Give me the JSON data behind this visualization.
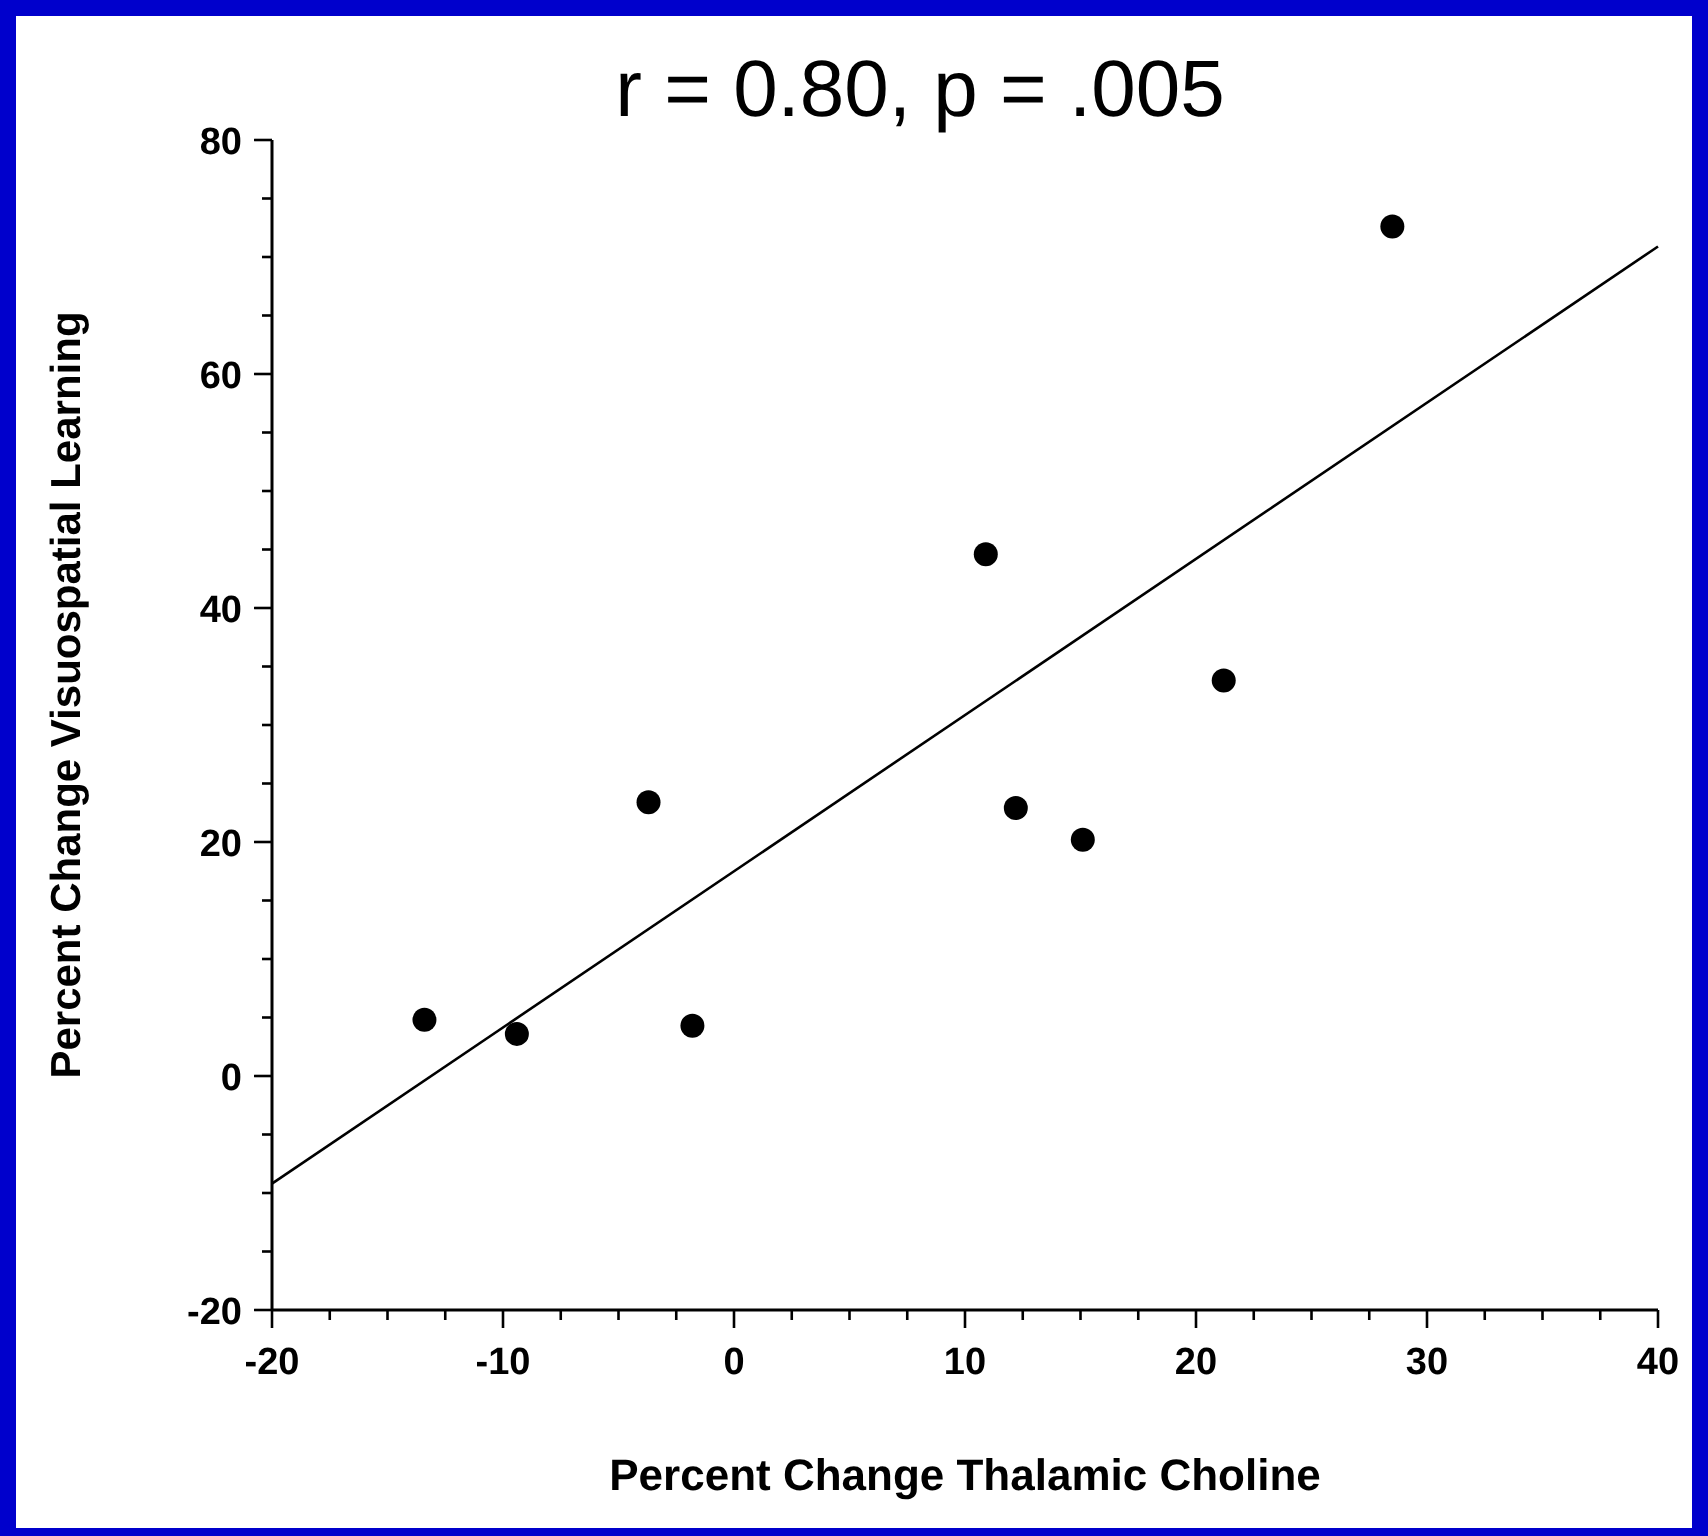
{
  "chart_data": {
    "type": "scatter",
    "title": "r = 0.80, p = .005",
    "xlabel": "Percent Change Thalamic Choline",
    "ylabel": "Percent Change Visuospatial Learning",
    "xlim": [
      -20,
      40
    ],
    "ylim": [
      -20,
      80
    ],
    "xticks": [
      -20,
      {
        "value": -17.5,
        "label": null
      },
      {
        "value": -15,
        "label": null
      },
      {
        "value": -12.5,
        "label": null
      },
      -10,
      {
        "value": -7.5,
        "label": null
      },
      {
        "value": -5,
        "label": null
      },
      {
        "value": -2.5,
        "label": null
      },
      0,
      {
        "value": 2.5,
        "label": null
      },
      {
        "value": 5,
        "label": null
      },
      {
        "value": 7.5,
        "label": null
      },
      10,
      {
        "value": 12.5,
        "label": null
      },
      {
        "value": 15,
        "label": null
      },
      {
        "value": 17.5,
        "label": null
      },
      20,
      {
        "value": 22.5,
        "label": null
      },
      {
        "value": 25,
        "label": null
      },
      {
        "value": 27.5,
        "label": null
      },
      30,
      {
        "value": 32.5,
        "label": null
      },
      {
        "value": 35,
        "label": null
      },
      {
        "value": 37.5,
        "label": null
      },
      40
    ],
    "yticks": [
      -20,
      {
        "value": -15,
        "label": null
      },
      {
        "value": -10,
        "label": null
      },
      {
        "value": -5,
        "label": null
      },
      0,
      {
        "value": 5,
        "label": null
      },
      {
        "value": 10,
        "label": null
      },
      {
        "value": 15,
        "label": null
      },
      20,
      {
        "value": 25,
        "label": null
      },
      {
        "value": 30,
        "label": null
      },
      {
        "value": 35,
        "label": null
      },
      40,
      {
        "value": 45,
        "label": null
      },
      {
        "value": 50,
        "label": null
      },
      {
        "value": 55,
        "label": null
      },
      60,
      {
        "value": 65,
        "label": null
      },
      {
        "value": 70,
        "label": null
      },
      {
        "value": 75,
        "label": null
      },
      80
    ],
    "grid": false,
    "marker": "circle",
    "series": [
      {
        "color": "#000000",
        "x": [
          -13.4,
          -9.4,
          -3.7,
          -1.8,
          10.9,
          12.2,
          15.1,
          21.2,
          28.5
        ],
        "values": [
          4.8,
          3.6,
          23.4,
          4.3,
          44.6,
          22.9,
          20.2,
          33.8,
          72.6
        ]
      },
      {
        "type": "line",
        "color": "#000000",
        "line_style": "solid",
        "marker": "none",
        "x": [
          -20,
          40
        ],
        "values": [
          -9.2,
          70.9
        ]
      }
    ]
  }
}
